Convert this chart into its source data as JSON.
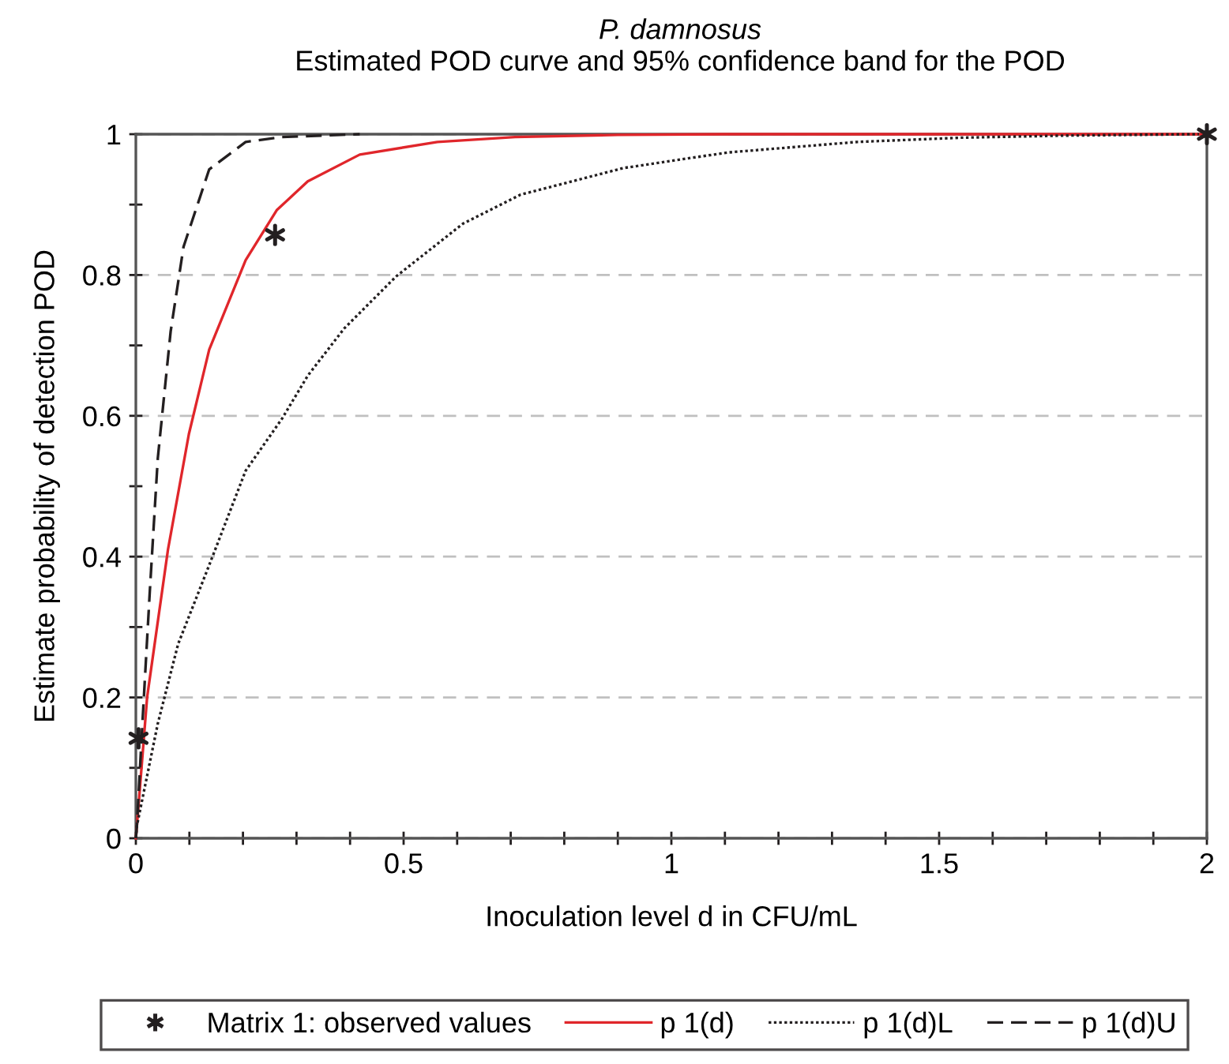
{
  "chart_data": {
    "type": "line",
    "title": "P. damnosus",
    "subtitle": "Estimated POD curve and 95% confidence band for the POD",
    "xlabel": "Inoculation level d in CFU/mL",
    "ylabel": "Estimate probability of detection POD",
    "xlim": [
      0,
      2
    ],
    "ylim": [
      0,
      1
    ],
    "xticks": [
      0,
      {
        "value": 0.1,
        "label": null
      },
      {
        "value": 0.2,
        "label": null
      },
      {
        "value": 0.3,
        "label": null
      },
      {
        "value": 0.4,
        "label": null
      },
      0.5,
      {
        "value": 0.6,
        "label": null
      },
      {
        "value": 0.7,
        "label": null
      },
      {
        "value": 0.8,
        "label": null
      },
      {
        "value": 0.9,
        "label": null
      },
      1,
      {
        "value": 1.1,
        "label": null
      },
      {
        "value": 1.2,
        "label": null
      },
      {
        "value": 1.3,
        "label": null
      },
      {
        "value": 1.4,
        "label": null
      },
      1.5,
      {
        "value": 1.6,
        "label": null
      },
      {
        "value": 1.7,
        "label": null
      },
      {
        "value": 1.8,
        "label": null
      },
      {
        "value": 1.9,
        "label": null
      },
      2
    ],
    "yticks": [
      0,
      {
        "value": 0.1,
        "label": null
      },
      0.2,
      {
        "value": 0.3,
        "label": null
      },
      0.4,
      {
        "value": 0.5,
        "label": null
      },
      0.6,
      {
        "value": 0.7,
        "label": null
      },
      0.8,
      {
        "value": 0.9,
        "label": null
      },
      1
    ],
    "grid": "y",
    "legend": "bottom",
    "series": [
      {
        "name": "Matrix 1: observed values",
        "type": "scatter",
        "marker": "cross",
        "color": "#231f20",
        "x": [
          0.005,
          0.26,
          2
        ],
        "values": [
          0.142,
          0.857,
          1
        ]
      },
      {
        "name": "p 1(d)",
        "line_style": "solid",
        "color": "#e0262b",
        "x": [
          0,
          0.002,
          0.021,
          0.06,
          0.099,
          0.137,
          0.205,
          0.263,
          0.321,
          0.418,
          0.563,
          0.708,
          0.9,
          1.1,
          2
        ],
        "values": [
          0,
          0.018,
          0.2,
          0.41,
          0.574,
          0.694,
          0.821,
          0.892,
          0.933,
          0.971,
          0.989,
          0.996,
          0.999,
          1,
          1
        ]
      },
      {
        "name": "p 1(d)L",
        "line_style": "dotted",
        "color": "#231f20",
        "x": [
          0,
          0.002,
          0.041,
          0.079,
          0.137,
          0.205,
          0.273,
          0.321,
          0.389,
          0.486,
          0.611,
          0.718,
          0.911,
          1.105,
          1.347,
          1.54,
          1.733,
          1.985
        ],
        "values": [
          0,
          0.018,
          0.163,
          0.276,
          0.388,
          0.522,
          0.596,
          0.657,
          0.724,
          0.798,
          0.873,
          0.914,
          0.952,
          0.974,
          0.989,
          0.995,
          0.998,
          1
        ]
      },
      {
        "name": "p 1(d)U",
        "line_style": "dashed",
        "color": "#231f20",
        "x": [
          0,
          0.002,
          0.012,
          0.026,
          0.041,
          0.065,
          0.089,
          0.137,
          0.205,
          0.273,
          0.418
        ],
        "values": [
          0,
          0.018,
          0.16,
          0.35,
          0.54,
          0.72,
          0.84,
          0.95,
          0.989,
          0.996,
          1
        ]
      }
    ]
  }
}
